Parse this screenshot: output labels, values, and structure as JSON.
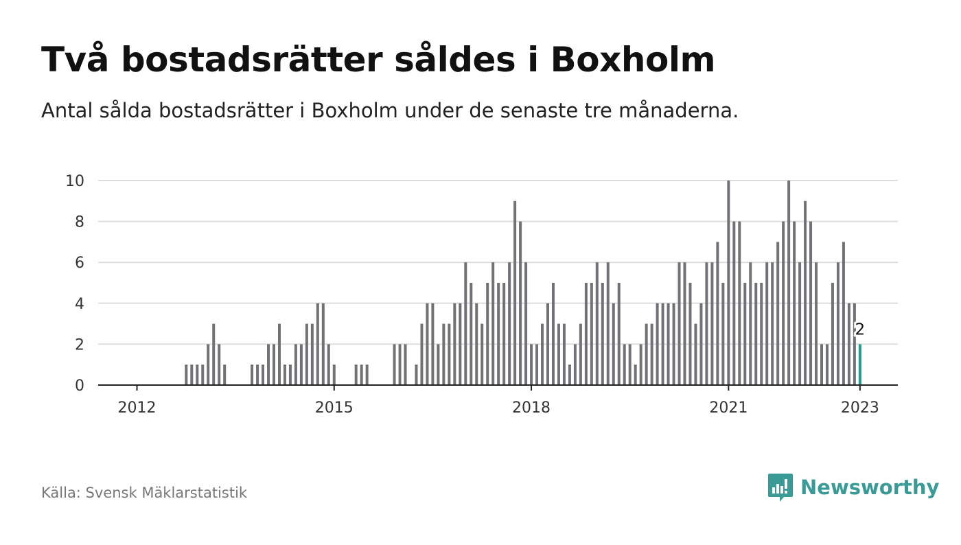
{
  "header": {
    "title": "Två bostadsrätter såldes i Boxholm",
    "subtitle": "Antal sålda bostadsrätter i Boxholm under de senaste tre månaderna."
  },
  "footer": {
    "source": "Källa: Svensk Mäklarstatistik",
    "brand": "Newsworthy",
    "brand_icon": "bar-chart-speech-bubble-icon"
  },
  "colors": {
    "bar": "#727175",
    "highlight": "#1f9e8f",
    "gridline": "#dddddd",
    "axis": "#222222",
    "brand": "#3a9b96"
  },
  "chart_data": {
    "type": "bar",
    "title": "Två bostadsrätter såldes i Boxholm",
    "subtitle": "Antal sålda bostadsrätter i Boxholm under de senaste tre månaderna.",
    "xlabel": "",
    "ylabel": "",
    "x_unit": "month",
    "x_start": "2012-01",
    "x_end": "2023-01",
    "x_ticks": [
      "2012",
      "2015",
      "2018",
      "2021",
      "2023"
    ],
    "y_ticks": [
      0,
      2,
      4,
      6,
      8,
      10
    ],
    "ylim": [
      0,
      10
    ],
    "grid": true,
    "legend": "none",
    "highlight": {
      "x": "2023-01",
      "value": 2,
      "label": "2"
    },
    "series": [
      {
        "values": [
          0,
          0,
          0,
          0,
          0,
          0,
          0,
          0,
          0,
          1,
          1,
          1,
          1,
          2,
          3,
          2,
          1,
          0,
          0,
          0,
          0,
          1,
          1,
          1,
          2,
          2,
          3,
          1,
          1,
          2,
          2,
          3,
          3,
          4,
          4,
          2,
          1,
          0,
          0,
          0,
          1,
          1,
          1,
          0,
          0,
          0,
          0,
          2,
          2,
          2,
          0,
          1,
          3,
          4,
          4,
          2,
          3,
          3,
          4,
          4,
          6,
          5,
          4,
          3,
          5,
          6,
          5,
          5,
          6,
          9,
          8,
          6,
          2,
          2,
          3,
          4,
          5,
          3,
          3,
          1,
          2,
          3,
          5,
          5,
          6,
          5,
          6,
          4,
          5,
          2,
          2,
          1,
          2,
          3,
          3,
          4,
          4,
          4,
          4,
          6,
          6,
          5,
          3,
          4,
          6,
          6,
          7,
          5,
          10,
          8,
          8,
          5,
          6,
          5,
          5,
          6,
          6,
          7,
          8,
          10,
          8,
          6,
          9,
          8,
          6,
          2,
          2,
          5,
          6,
          7,
          4,
          4,
          2
        ]
      }
    ]
  }
}
